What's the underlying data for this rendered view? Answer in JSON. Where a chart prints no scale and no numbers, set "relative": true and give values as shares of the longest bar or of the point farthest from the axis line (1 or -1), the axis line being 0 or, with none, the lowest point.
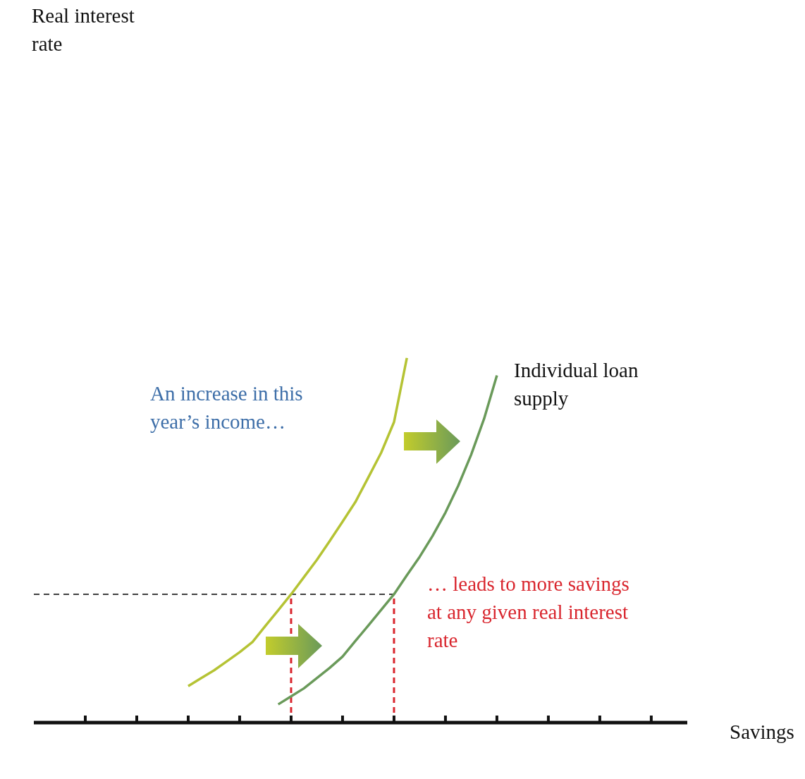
{
  "chart_data": {
    "type": "line",
    "relative": true,
    "xlabel": "Savings",
    "categories": [
      null,
      null,
      null,
      null,
      null,
      null,
      null,
      null,
      null,
      null,
      null,
      null,
      null,
      null,
      null,
      null,
      null,
      null,
      null,
      null,
      null,
      null,
      null,
      null,
      null,
      null,
      null,
      null,
      null,
      null,
      null,
      null,
      null,
      null,
      null,
      null,
      null,
      null,
      null,
      null,
      null,
      null,
      null,
      null,
      null,
      null,
      null,
      null,
      null,
      null,
      null
    ],
    "series": [
      {
        "color": "#b5c334",
        "values": [
          null,
          null,
          null,
          null,
          null,
          null,
          null,
          null,
          null,
          null,
          null,
          null,
          0.1,
          0.122,
          0.143,
          0.168,
          0.193,
          0.221,
          0.265,
          0.308,
          0.352,
          0.399,
          0.446,
          0.498,
          0.551,
          0.605,
          0.672,
          0.74,
          0.824,
          1.0,
          null,
          null,
          null,
          null,
          null,
          null,
          null,
          null,
          null,
          null,
          null,
          null,
          null,
          null,
          null,
          null,
          null,
          null,
          null,
          null,
          null
        ]
      },
      {
        "name": "Individual loan supply",
        "color": "#6a9a5a",
        "values": [
          null,
          null,
          null,
          null,
          null,
          null,
          null,
          null,
          null,
          null,
          null,
          null,
          null,
          null,
          null,
          null,
          null,
          null,
          null,
          0.05,
          0.072,
          0.094,
          0.122,
          0.15,
          0.181,
          0.224,
          0.266,
          0.309,
          0.352,
          0.404,
          0.455,
          0.512,
          0.576,
          0.65,
          0.735,
          0.833,
          0.952,
          null,
          null,
          null,
          null,
          null,
          null,
          null,
          null,
          null,
          null,
          null,
          null,
          null,
          null
        ]
      }
    ],
    "ref_lines": [
      {
        "axis": "y",
        "value": 0.352,
        "color": "#000000",
        "line_style": "dashed"
      }
    ],
    "annotations": [
      "An increase in this year’s income…",
      "… leads to more savings at any given real interest rate",
      "Real interest rate"
    ],
    "line_style": "solid"
  }
}
